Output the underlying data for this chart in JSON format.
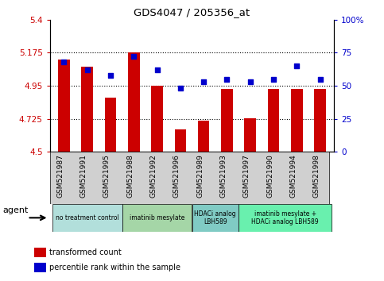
{
  "title": "GDS4047 / 205356_at",
  "samples": [
    "GSM521987",
    "GSM521991",
    "GSM521995",
    "GSM521988",
    "GSM521992",
    "GSM521996",
    "GSM521989",
    "GSM521993",
    "GSM521997",
    "GSM521990",
    "GSM521994",
    "GSM521998"
  ],
  "bar_values": [
    5.13,
    5.08,
    4.87,
    5.175,
    4.95,
    4.65,
    4.71,
    4.93,
    4.73,
    4.93,
    4.93,
    4.93
  ],
  "dot_values": [
    68,
    62,
    58,
    72,
    62,
    48,
    53,
    55,
    53,
    55,
    65,
    55
  ],
  "bar_color": "#cc0000",
  "dot_color": "#0000cc",
  "ylim_left": [
    4.5,
    5.4
  ],
  "ylim_right": [
    0,
    100
  ],
  "yticks_left": [
    4.5,
    4.725,
    4.95,
    5.175,
    5.4
  ],
  "yticks_right": [
    0,
    25,
    50,
    75,
    100
  ],
  "ytick_labels_left": [
    "4.5",
    "4.725",
    "4.95",
    "5.175",
    "5.4"
  ],
  "ytick_labels_right": [
    "0",
    "25",
    "50",
    "75",
    "100%"
  ],
  "hlines": [
    4.725,
    4.95,
    5.175
  ],
  "agent_groups": [
    {
      "label": "no treatment control",
      "start": 0,
      "end": 3,
      "color": "#b2dfdb"
    },
    {
      "label": "imatinib mesylate",
      "start": 3,
      "end": 6,
      "color": "#a5d6a7"
    },
    {
      "label": "HDACi analog\nLBH589",
      "start": 6,
      "end": 8,
      "color": "#80cbc4"
    },
    {
      "label": "imatinib mesylate +\nHDACi analog LBH589",
      "start": 8,
      "end": 12,
      "color": "#69f0ae"
    }
  ],
  "legend_items": [
    {
      "label": "transformed count",
      "color": "#cc0000"
    },
    {
      "label": "percentile rank within the sample",
      "color": "#0000cc"
    }
  ],
  "agent_label": "agent",
  "bar_width": 0.5,
  "background_color": "#ffffff",
  "plot_bg_color": "#ffffff"
}
